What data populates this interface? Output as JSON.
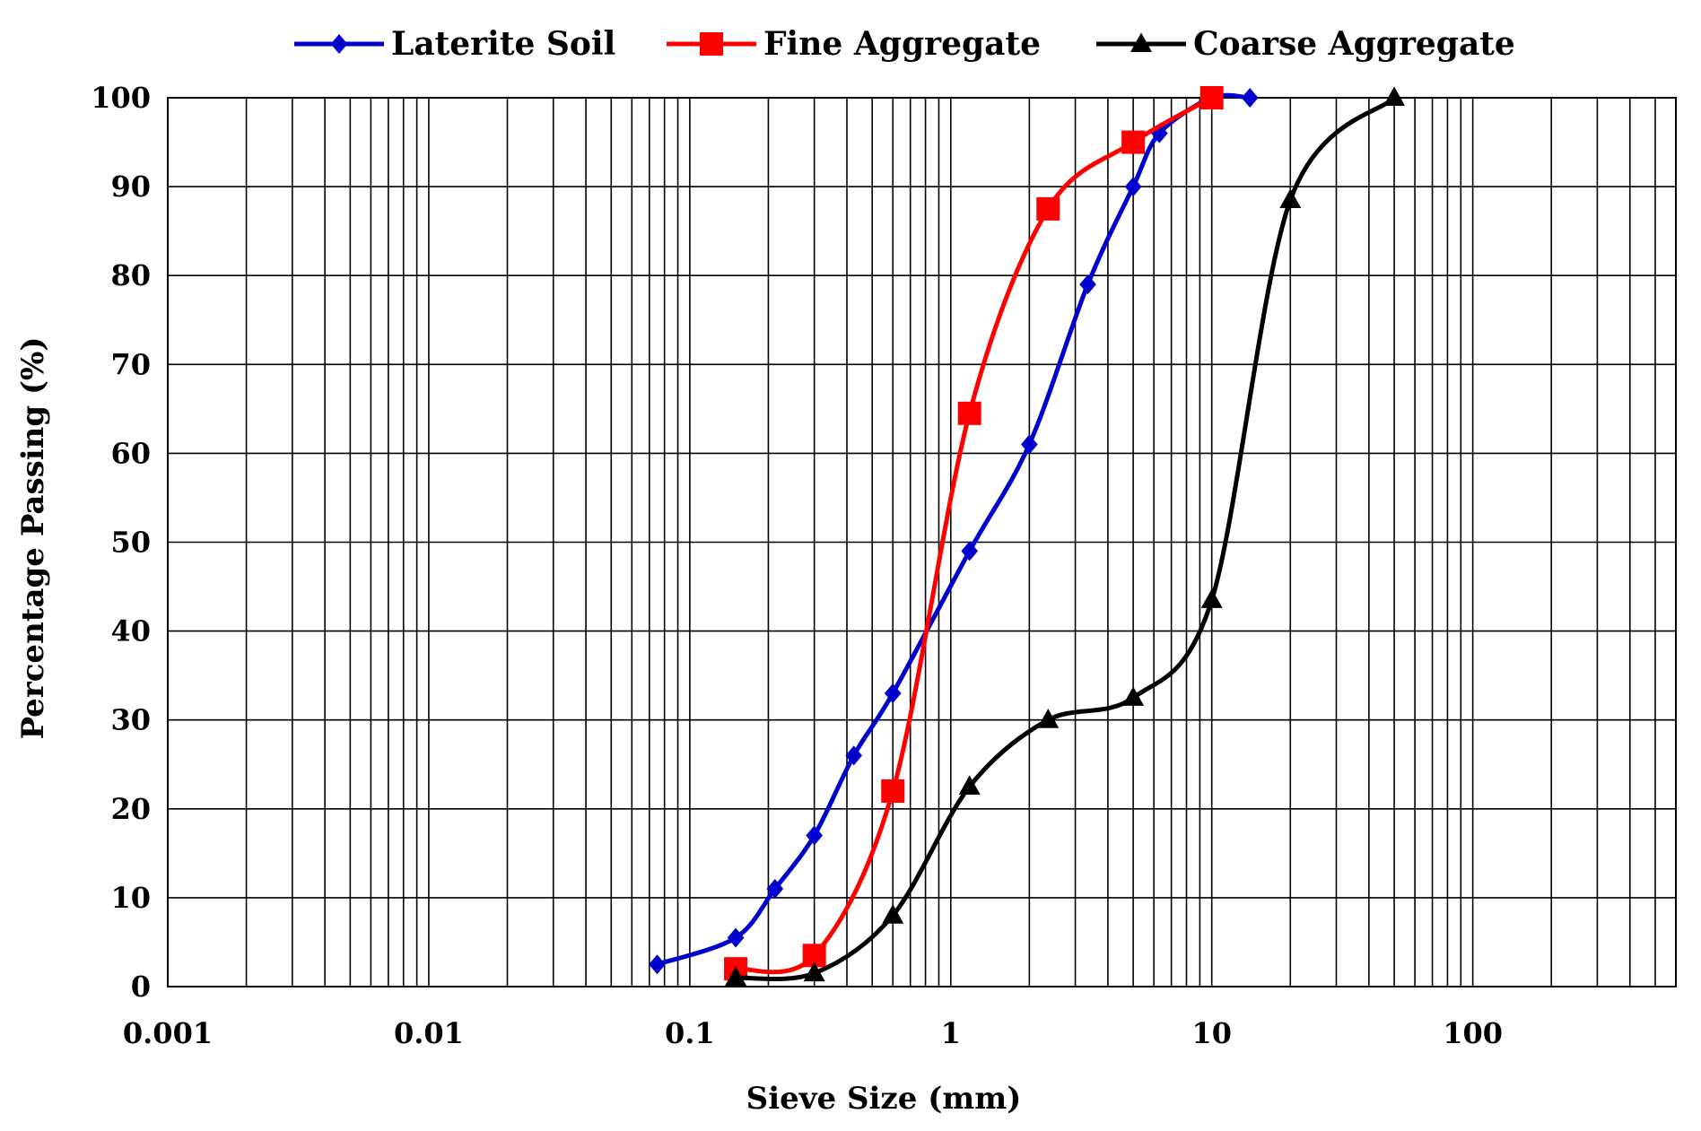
{
  "chart_data": {
    "type": "scatter",
    "title": "",
    "xlabel": "Sieve Size (mm)",
    "ylabel": "Percentage Passing (%)",
    "xscale": "log",
    "xlim": [
      0.001,
      600
    ],
    "ylim": [
      0,
      100
    ],
    "grid": true,
    "legend_position": "top",
    "x_tick_labels": [
      "0.001",
      "0.01",
      "0.1",
      "1",
      "10",
      "100"
    ],
    "y_tick_labels": [
      "0",
      "10",
      "20",
      "30",
      "40",
      "50",
      "60",
      "70",
      "80",
      "90",
      "100"
    ],
    "series": [
      {
        "name": "Laterite Soil",
        "color": "#0000cc",
        "marker": "diamond",
        "x": [
          0.075,
          0.15,
          0.212,
          0.3,
          0.425,
          0.6,
          1.18,
          2.0,
          3.35,
          5.0,
          6.3,
          10.0,
          14.0
        ],
        "y": [
          2.5,
          5.5,
          11,
          17,
          26,
          33,
          49,
          61,
          79,
          90,
          96,
          100,
          100
        ]
      },
      {
        "name": "Fine Aggregate",
        "color": "#ff0000",
        "marker": "square",
        "x": [
          0.15,
          0.3,
          0.6,
          1.18,
          2.36,
          5.0,
          10.0
        ],
        "y": [
          2,
          3.5,
          22,
          64.5,
          87.5,
          95,
          100
        ]
      },
      {
        "name": "Coarse Aggregate",
        "color": "#000000",
        "marker": "triangle",
        "x": [
          0.15,
          0.3,
          0.6,
          1.18,
          2.36,
          5.0,
          10.0,
          20.0,
          50.0
        ],
        "y": [
          1,
          1.5,
          8,
          22.5,
          30,
          32.5,
          43.5,
          88.5,
          100
        ]
      }
    ]
  }
}
